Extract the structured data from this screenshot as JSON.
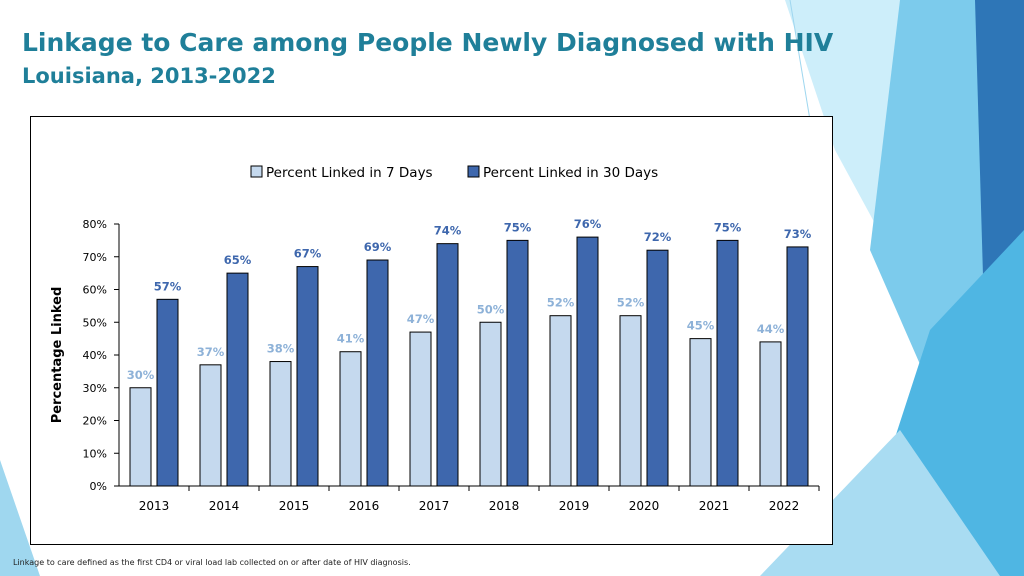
{
  "slide": {
    "title": "Linkage to Care among People Newly Diagnosed with HIV",
    "subtitle": "Louisiana, 2013-2022",
    "footnote": "Linkage to care defined as the first CD4 or viral load lab collected on or after date of HIV diagnosis."
  },
  "colors": {
    "title": "#1f7f99",
    "series_7": "#c5d9ee",
    "series_30": "#3e67ad",
    "label_7": "#8eb2d8",
    "label_30": "#3e67ad",
    "deco_light": "#a9dcf2",
    "deco_mid": "#4fb6e3",
    "deco_dark": "#2e76b7"
  },
  "chart_data": {
    "type": "bar",
    "title": "",
    "xlabel": "",
    "ylabel": "Percentage Linked",
    "ylim": [
      0,
      80
    ],
    "yticks": [
      0,
      10,
      20,
      30,
      40,
      50,
      60,
      70,
      80
    ],
    "ytick_labels": [
      "0%",
      "10%",
      "20%",
      "30%",
      "40%",
      "50%",
      "60%",
      "70%",
      "80%"
    ],
    "legend_position": "top-center",
    "categories": [
      "2013",
      "2014",
      "2015",
      "2016",
      "2017",
      "2018",
      "2019",
      "2020",
      "2021",
      "2022"
    ],
    "series": [
      {
        "name": "Percent Linked in 7 Days",
        "values": [
          30,
          37,
          38,
          41,
          47,
          50,
          52,
          52,
          45,
          44
        ],
        "labels": [
          "30%",
          "37%",
          "38%",
          "41%",
          "47%",
          "50%",
          "52%",
          "52%",
          "45%",
          "44%"
        ]
      },
      {
        "name": "Percent Linked in 30 Days",
        "values": [
          57,
          65,
          67,
          69,
          74,
          75,
          76,
          72,
          75,
          73
        ],
        "labels": [
          "57%",
          "65%",
          "67%",
          "69%",
          "74%",
          "75%",
          "76%",
          "72%",
          "75%",
          "73%"
        ]
      }
    ]
  }
}
